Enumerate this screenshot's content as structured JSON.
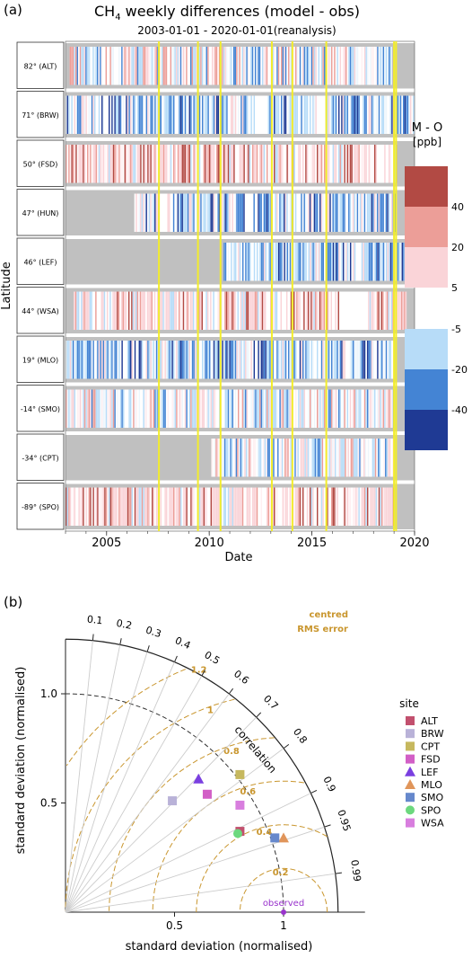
{
  "panel_a": {
    "panel_label": "(a)",
    "title_main": "CH",
    "title_sub": "4",
    "title_rest": " weekly differences (model - obs)",
    "subtitle": "2003-01-01 - 2020-01-01(reanalysis)",
    "xlabel": "Date",
    "ylabel": "Latitude",
    "legend_title_1": "M - O",
    "legend_title_2": "[ppb]"
  },
  "panel_b": {
    "panel_label": "(b)",
    "xlabel": "standard deviation (normalised)",
    "ylabel": "standard deviation (normalised)",
    "correlation_label": "correlation",
    "rms_label_1": "centred",
    "rms_label_2": "RMS error",
    "observed_label": "observed",
    "legend_title": "site"
  },
  "chart_data": [
    {
      "type": "heatmap",
      "title": "CH4 weekly differences (model - obs)",
      "subtitle": "2003-01-01 - 2020-01-01(reanalysis)",
      "xlabel": "Date",
      "ylabel": "Latitude",
      "x_range": [
        "2003-01-01",
        "2020-01-01"
      ],
      "x_ticks": [
        "2005",
        "2010",
        "2015",
        "2020"
      ],
      "rows": [
        {
          "label": "82° (ALT)",
          "key": "ALT",
          "coverage": [
            [
              2003.2,
              2013.0
            ],
            [
              2013.0,
              2018.9
            ]
          ],
          "bias": "mixed",
          "gaps": [
            [
              2004.95,
              2005.15
            ],
            [
              2012.85,
              2013.05
            ]
          ]
        },
        {
          "label": "71° (BRW)",
          "key": "BRW",
          "coverage": [
            [
              2003.0,
              2020.0
            ]
          ],
          "bias": "negative",
          "gaps": [
            [
              2012.2,
              2012.85
            ]
          ]
        },
        {
          "label": "50° (FSD)",
          "key": "FSD",
          "coverage": [
            [
              2003.0,
              2019.1
            ]
          ],
          "bias": "positive",
          "gaps": [
            [
              2018.3,
              2018.5
            ]
          ]
        },
        {
          "label": "47° (HUN)",
          "key": "HUN",
          "coverage": [
            [
              2006.35,
              2019.1
            ]
          ],
          "bias": "negative",
          "gaps": [
            [
              2007.5,
              2007.9
            ],
            [
              2011.7,
              2012.1
            ]
          ]
        },
        {
          "label": "46° (LEF)",
          "key": "LEF",
          "coverage": [
            [
              2010.7,
              2020.0
            ]
          ],
          "bias": "negative",
          "gaps": [
            [
              2017.1,
              2017.4
            ]
          ]
        },
        {
          "label": "44° (WSA)",
          "key": "WSA",
          "coverage": [
            [
              2003.4,
              2019.6
            ]
          ],
          "bias": "positive",
          "gaps": [
            [
              2016.3,
              2017.7
            ]
          ]
        },
        {
          "label": "19° (MLO)",
          "key": "MLO",
          "coverage": [
            [
              2003.0,
              2019.0
            ]
          ],
          "bias": "negative",
          "gaps": []
        },
        {
          "label": "-14° (SMO)",
          "key": "SMO",
          "coverage": [
            [
              2003.0,
              2019.0
            ]
          ],
          "bias": "mixed",
          "gaps": []
        },
        {
          "label": "-34° (CPT)",
          "key": "CPT",
          "coverage": [
            [
              2010.1,
              2019.0
            ]
          ],
          "bias": "mixed",
          "gaps": []
        },
        {
          "label": "-89° (SPO)",
          "key": "SPO",
          "coverage": [
            [
              2003.0,
              2019.0
            ]
          ],
          "bias": "positive",
          "gaps": []
        }
      ],
      "event_lines": [
        2007.55,
        2009.45,
        2010.55,
        2013.05,
        2014.05,
        2015.7,
        2019.0,
        2019.1
      ],
      "event_line_color": "#f2ec2c",
      "missing_color": "#c0c0c0",
      "colorbar": {
        "title": "M - O [ppb]",
        "bins": [
          {
            "range": "> 40",
            "color": "#b24a44"
          },
          {
            "range": "20 to 40",
            "color": "#ec9e98"
          },
          {
            "range": "5 to 20",
            "color": "#fad4d8"
          },
          {
            "range": "-20 to -5",
            "color": "#b7dcf8"
          },
          {
            "range": "-40 to -20",
            "color": "#4484d4"
          },
          {
            "range": "< -40",
            "color": "#1f3a94"
          }
        ],
        "tick_labels_pos": [
          "40",
          "20",
          "5"
        ],
        "tick_labels_neg": [
          "-5",
          "-20",
          "-40"
        ]
      }
    },
    {
      "type": "scatter",
      "subtype": "taylor-diagram",
      "xlabel": "standard deviation (normalised)",
      "ylabel": "standard deviation (normalised)",
      "x_ticks": [
        "0.5",
        "1"
      ],
      "y_ticks": [
        "0.5",
        "1.0"
      ],
      "max_sd": 1.25,
      "reference_sd": 1.0,
      "correlation_ticks": [
        0.1,
        0.2,
        0.3,
        0.4,
        0.5,
        0.6,
        0.7,
        0.8,
        0.9,
        0.95,
        0.99
      ],
      "correlation_tick_labels": [
        "0.1",
        "0.2",
        "0.3",
        "0.4",
        "0.5",
        "0.6",
        "0.7",
        "0.8",
        "0.9",
        "0.95",
        "0.99"
      ],
      "rms_contours": [
        0.2,
        0.4,
        0.6,
        0.8,
        1.0,
        1.2
      ],
      "rms_contour_labels": [
        "0.2",
        "0.4",
        "0.6",
        "0.8",
        "1",
        "1.2"
      ],
      "rms_color": "#c9962e",
      "observed": {
        "sd": 1.0,
        "color": "#9933cc"
      },
      "series": [
        {
          "name": "ALT",
          "shape": "square",
          "color": "#c2506e",
          "x": 0.8,
          "y": 0.37
        },
        {
          "name": "BRW",
          "shape": "square",
          "color": "#b9b2d8",
          "x": 0.49,
          "y": 0.51
        },
        {
          "name": "CPT",
          "shape": "square",
          "color": "#c6b85e",
          "x": 0.8,
          "y": 0.63
        },
        {
          "name": "FSD",
          "shape": "square",
          "color": "#d25fc6",
          "x": 0.65,
          "y": 0.54
        },
        {
          "name": "LEF",
          "shape": "triangle",
          "color": "#7a3fe0",
          "x": 0.61,
          "y": 0.61
        },
        {
          "name": "MLO",
          "shape": "triangle",
          "color": "#e0955a",
          "x": 1.0,
          "y": 0.34
        },
        {
          "name": "SMO",
          "shape": "square",
          "color": "#6688cc",
          "x": 0.96,
          "y": 0.34
        },
        {
          "name": "SPO",
          "shape": "circle",
          "color": "#6cd87e",
          "x": 0.79,
          "y": 0.36
        },
        {
          "name": "WSA",
          "shape": "square",
          "color": "#d87ede",
          "x": 0.8,
          "y": 0.49
        }
      ]
    }
  ]
}
